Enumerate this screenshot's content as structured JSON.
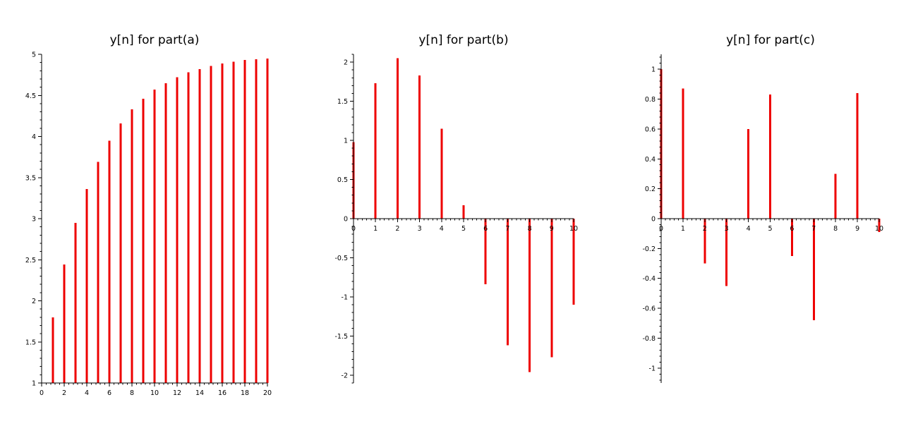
{
  "chart_data": [
    {
      "type": "bar",
      "title": "y[n] for part(a)",
      "xlabel": "",
      "ylabel": "",
      "xlim": [
        0,
        20
      ],
      "ylim": [
        1,
        5
      ],
      "xticks": [
        0,
        2,
        4,
        6,
        8,
        10,
        12,
        14,
        16,
        18,
        20
      ],
      "yticks": [
        1,
        1.5,
        2,
        2.5,
        3,
        3.5,
        4,
        4.5,
        5
      ],
      "ytick_labels": [
        "1",
        "1.5",
        "2",
        "2.5",
        "3",
        "3.5",
        "4",
        "4.5",
        "5"
      ],
      "minor_x": 4,
      "minor_y": 4,
      "x": [
        1,
        2,
        3,
        4,
        5,
        6,
        7,
        8,
        9,
        10,
        11,
        12,
        13,
        14,
        15,
        16,
        17,
        18,
        19,
        20
      ],
      "values": [
        1.8,
        2.44,
        2.95,
        3.36,
        3.69,
        3.95,
        4.16,
        4.33,
        4.46,
        4.57,
        4.65,
        4.72,
        4.78,
        4.82,
        4.86,
        4.89,
        4.91,
        4.93,
        4.94,
        4.95
      ],
      "color": "#ee0000",
      "grid": false
    },
    {
      "type": "bar",
      "title": "y[n] for part(b)",
      "xlabel": "",
      "ylabel": "",
      "xlim": [
        0,
        10
      ],
      "ylim": [
        -2.1,
        2.1
      ],
      "xticks": [
        0,
        1,
        2,
        3,
        4,
        5,
        6,
        7,
        8,
        9,
        10
      ],
      "yticks": [
        -2,
        -1.5,
        -1,
        -0.5,
        0,
        0.5,
        1,
        1.5,
        2
      ],
      "ytick_labels": [
        "-2",
        "-1.5",
        "-1",
        "-0.5",
        "0",
        "0.5",
        "1",
        "1.5",
        "2"
      ],
      "minor_x": 4,
      "minor_y": 4,
      "x": [
        0,
        1,
        2,
        3,
        4,
        5,
        6,
        7,
        8,
        9,
        10
      ],
      "values": [
        0.98,
        1.73,
        2.05,
        1.83,
        1.15,
        0.17,
        -0.84,
        -1.62,
        -1.96,
        -1.77,
        -1.1
      ],
      "color": "#ee0000",
      "grid": false
    },
    {
      "type": "bar",
      "title": "y[n] for part(c)",
      "xlabel": "",
      "ylabel": "",
      "xlim": [
        0,
        10
      ],
      "ylim": [
        -1.1,
        1.1
      ],
      "xticks": [
        0,
        1,
        2,
        3,
        4,
        5,
        6,
        7,
        8,
        9,
        10
      ],
      "yticks": [
        -1,
        -0.8,
        -0.6,
        -0.4,
        -0.2,
        0,
        0.2,
        0.4,
        0.6,
        0.8,
        1
      ],
      "ytick_labels": [
        "-1",
        "-0.8",
        "-0.6",
        "-0.4",
        "-0.2",
        "0",
        "0.2",
        "0.4",
        "0.6",
        "0.8",
        "1"
      ],
      "minor_x": 4,
      "minor_y": 4,
      "x": [
        0,
        1,
        2,
        3,
        4,
        5,
        6,
        7,
        8,
        9,
        10
      ],
      "values": [
        1.0,
        0.87,
        -0.3,
        -0.45,
        0.6,
        0.83,
        -0.25,
        -0.68,
        0.3,
        0.84,
        -0.09
      ],
      "color": "#ee0000",
      "grid": false
    }
  ]
}
